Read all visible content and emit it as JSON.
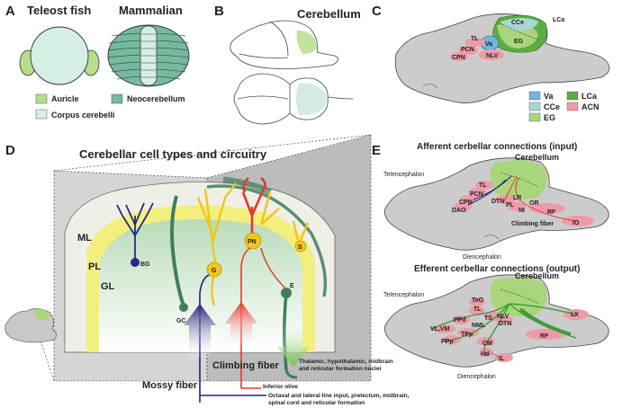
{
  "panel_a": {
    "letter": "A",
    "titles": [
      "Teleost fish",
      "Mammalian"
    ],
    "legend": [
      {
        "label": "Auricle",
        "color": "#b5df8c"
      },
      {
        "label": "Neocerebellum",
        "color": "#77b99e"
      },
      {
        "label": "Corpus cerebelli",
        "color": "#d6efe4"
      }
    ]
  },
  "panel_b": {
    "letter": "B",
    "label": "Cerebellum"
  },
  "panel_c": {
    "letter": "C",
    "regions": [
      "CCe",
      "LCa",
      "EG",
      "Va",
      "TL",
      "PCN",
      "CPN",
      "NLV"
    ],
    "legend": [
      {
        "label": "Va",
        "color": "#6fb5dc"
      },
      {
        "label": "LCa",
        "color": "#5aad3e"
      },
      {
        "label": "CCe",
        "color": "#a8d7d3"
      },
      {
        "label": "ACN",
        "color": "#ef9aa8"
      },
      {
        "label": "EG",
        "color": "#a9d67c"
      }
    ]
  },
  "panel_d": {
    "letter": "D",
    "title": "Cerebellar cell types and circuitry",
    "layers": [
      "ML",
      "PL",
      "GL"
    ],
    "cells": [
      "BG",
      "G",
      "PN",
      "S",
      "E",
      "GC"
    ],
    "inputs": [
      {
        "label": "Climbing fiber",
        "color": "#e23a2c"
      },
      {
        "label": "Mossy fiber",
        "color": "#26207a"
      }
    ],
    "sources": {
      "inferior_olive": "Inferior olive",
      "mossy": "Octaval and lateral line input, pretectum, midbrain, spinal cord and reticular formation",
      "output": "Thalamic, hypothalamic, midbrain and reticular formation nuclei"
    }
  },
  "panel_e": {
    "letter": "E",
    "afferent": {
      "title": "Afferent cerbellar connections (input)",
      "labels": [
        "Cerebellum",
        "Telencephalon",
        "Diencephalon",
        "TL",
        "CPN",
        "PCN",
        "DAO",
        "DTN",
        "LR",
        "PL",
        "NI",
        "OR",
        "RF",
        "IO",
        "Climbing fiber"
      ]
    },
    "efferent": {
      "title": "Efferent cerbellar connections (output)",
      "labels": [
        "Cerebellum",
        "Telencephalon",
        "Diencephalon",
        "TeO",
        "TL",
        "PPd",
        "TS",
        "NLV",
        "VL,VM",
        "NML",
        "DTN",
        "TPp",
        "PPp",
        "CM",
        "Hd",
        "IL",
        "RF",
        "LX"
      ]
    }
  }
}
